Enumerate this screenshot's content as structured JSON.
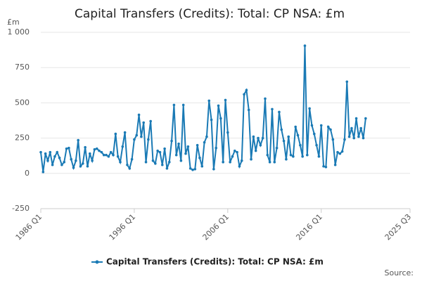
{
  "chart_data": {
    "type": "line",
    "title": "Capital Transfers (Credits): Total: CP NSA: £m",
    "y_unit": "£m",
    "source": "Source:",
    "categories": [
      "1986 Q1",
      "1986 Q2",
      "1986 Q3",
      "1986 Q4",
      "1987 Q1",
      "1987 Q2",
      "1987 Q3",
      "1987 Q4",
      "1988 Q1",
      "1988 Q2",
      "1988 Q3",
      "1988 Q4",
      "1989 Q1",
      "1989 Q2",
      "1989 Q3",
      "1989 Q4",
      "1990 Q1",
      "1990 Q2",
      "1990 Q3",
      "1990 Q4",
      "1991 Q1",
      "1991 Q2",
      "1991 Q3",
      "1991 Q4",
      "1992 Q1",
      "1992 Q2",
      "1992 Q3",
      "1992 Q4",
      "1993 Q1",
      "1993 Q2",
      "1993 Q3",
      "1993 Q4",
      "1994 Q1",
      "1994 Q2",
      "1994 Q3",
      "1994 Q4",
      "1995 Q1",
      "1995 Q2",
      "1995 Q3",
      "1995 Q4",
      "1996 Q1",
      "1996 Q2",
      "1996 Q3",
      "1996 Q4",
      "1997 Q1",
      "1997 Q2",
      "1997 Q3",
      "1997 Q4",
      "1998 Q1",
      "1998 Q2",
      "1998 Q3",
      "1998 Q4",
      "1999 Q1",
      "1999 Q2",
      "1999 Q3",
      "1999 Q4",
      "2000 Q1",
      "2000 Q2",
      "2000 Q3",
      "2000 Q4",
      "2001 Q1",
      "2001 Q2",
      "2001 Q3",
      "2001 Q4",
      "2002 Q1",
      "2002 Q2",
      "2002 Q3",
      "2002 Q4",
      "2003 Q1",
      "2003 Q2",
      "2003 Q3",
      "2003 Q4",
      "2004 Q1",
      "2004 Q2",
      "2004 Q3",
      "2004 Q4",
      "2005 Q1",
      "2005 Q2",
      "2005 Q3",
      "2005 Q4",
      "2006 Q1",
      "2006 Q2",
      "2006 Q3",
      "2006 Q4",
      "2007 Q1",
      "2007 Q2",
      "2007 Q3",
      "2007 Q4",
      "2008 Q1",
      "2008 Q2",
      "2008 Q3",
      "2008 Q4",
      "2009 Q1",
      "2009 Q2",
      "2009 Q3",
      "2009 Q4",
      "2010 Q1",
      "2010 Q2",
      "2010 Q3",
      "2010 Q4",
      "2011 Q1",
      "2011 Q2",
      "2011 Q3",
      "2011 Q4",
      "2012 Q1",
      "2012 Q2",
      "2012 Q3",
      "2012 Q4",
      "2013 Q1",
      "2013 Q2",
      "2013 Q3",
      "2013 Q4",
      "2014 Q1",
      "2014 Q2",
      "2014 Q3",
      "2014 Q4",
      "2015 Q1",
      "2015 Q2",
      "2015 Q3",
      "2015 Q4",
      "2016 Q1",
      "2016 Q2",
      "2016 Q3",
      "2016 Q4",
      "2017 Q1",
      "2017 Q2",
      "2017 Q3",
      "2017 Q4",
      "2018 Q1",
      "2018 Q2",
      "2018 Q3",
      "2018 Q4",
      "2019 Q1",
      "2019 Q2",
      "2019 Q3",
      "2019 Q4",
      "2020 Q1",
      "2020 Q2",
      "2020 Q3",
      "2020 Q4"
    ],
    "series": [
      {
        "name": "Capital Transfers (Credits): Total: CP NSA: £m",
        "color": "#1a7ab5",
        "values": [
          150,
          10,
          140,
          90,
          150,
          60,
          120,
          150,
          110,
          60,
          80,
          175,
          180,
          100,
          40,
          90,
          235,
          50,
          70,
          185,
          50,
          140,
          90,
          170,
          175,
          160,
          150,
          130,
          130,
          120,
          150,
          130,
          280,
          120,
          80,
          190,
          290,
          60,
          35,
          100,
          240,
          270,
          415,
          260,
          360,
          80,
          240,
          370,
          90,
          70,
          160,
          150,
          60,
          175,
          35,
          80,
          230,
          485,
          130,
          210,
          90,
          485,
          140,
          190,
          35,
          25,
          30,
          200,
          110,
          50,
          220,
          260,
          515,
          380,
          30,
          180,
          480,
          390,
          80,
          520,
          290,
          80,
          120,
          160,
          150,
          50,
          90,
          560,
          590,
          450,
          100,
          260,
          160,
          250,
          200,
          250,
          530,
          130,
          80,
          455,
          80,
          180,
          435,
          310,
          230,
          100,
          260,
          130,
          120,
          330,
          270,
          200,
          120,
          905,
          130,
          460,
          340,
          280,
          200,
          120,
          340,
          50,
          45,
          330,
          310,
          240,
          60,
          150,
          140,
          155,
          240,
          650,
          260,
          320,
          250,
          390,
          260,
          320,
          250,
          390
        ]
      }
    ],
    "xlim": [
      "1986 Q1",
      "2025 Q3"
    ],
    "xticks": [
      "1986 Q1",
      "1996 Q1",
      "2006 Q1",
      "2016 Q1",
      "2025 Q3"
    ],
    "ylim": [
      -250,
      1000
    ],
    "yticks": [
      -250,
      0,
      250,
      500,
      750,
      {
        "value": 1000,
        "label": "1 000"
      }
    ],
    "grid": true
  }
}
